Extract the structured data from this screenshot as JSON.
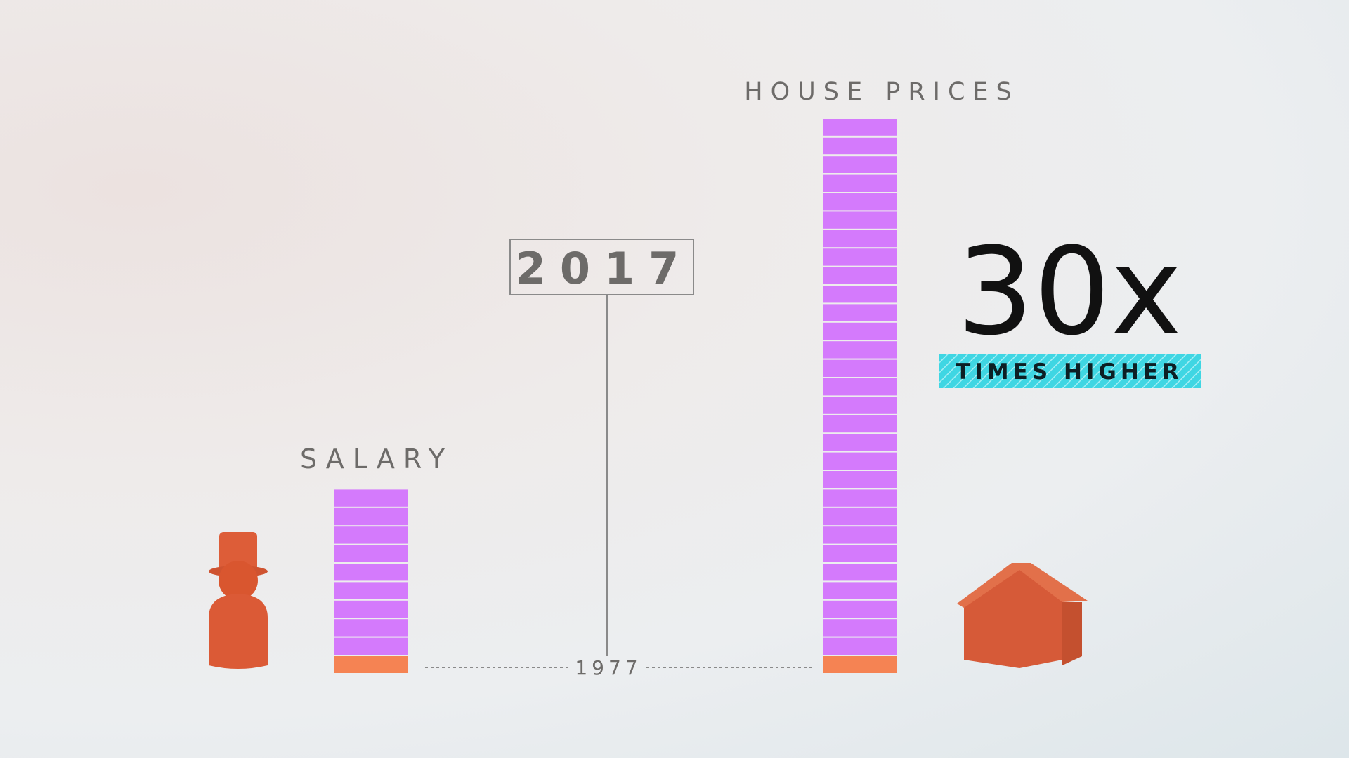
{
  "chart_data": {
    "type": "bar",
    "categories": [
      "SALARY",
      "HOUSE PRICES"
    ],
    "series": [
      {
        "values": [
          10,
          30
        ]
      }
    ],
    "baseline_label": "1977",
    "baseline_values": [
      1,
      1
    ],
    "year_label": "2017",
    "multiplier_text": "30x",
    "multiplier_caption": "TIMES HIGHER",
    "colors": {
      "bar": "#d47afc",
      "bar_divider": "#f4e6ff",
      "baseline_segment": "#f58353",
      "icons": "#db5a36",
      "badge": "#35d4e1"
    }
  },
  "icons": {
    "person": "person-top-hat-icon",
    "house": "house-icon"
  }
}
